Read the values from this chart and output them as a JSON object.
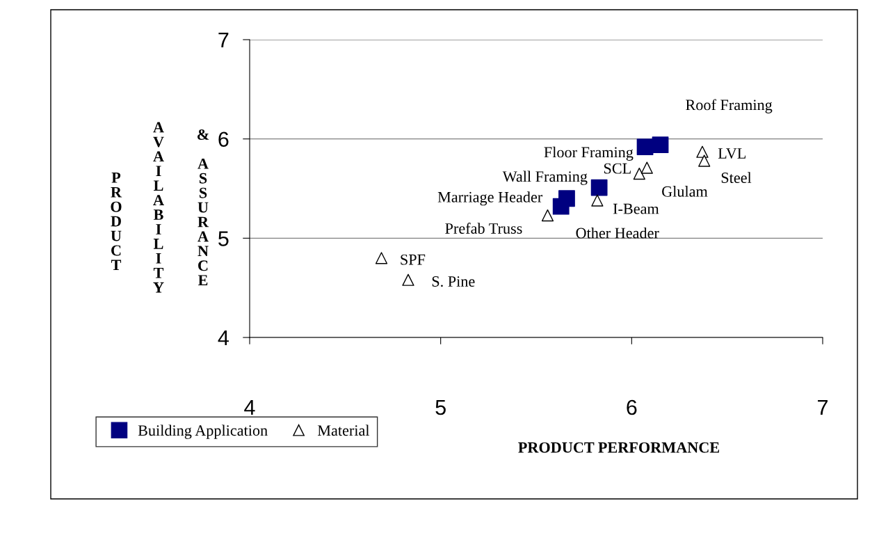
{
  "chart_data": {
    "type": "scatter",
    "xlabel": "PRODUCT PERFORMANCE",
    "ylabel": "PRODUCT AVAILABILITY & ASSURANCE",
    "xlim": [
      4,
      7
    ],
    "ylim": [
      4,
      7
    ],
    "xticks": [
      4,
      5,
      6,
      7
    ],
    "yticks": [
      4,
      5,
      6,
      7
    ],
    "grid": "y",
    "legend": "bottom left",
    "series": [
      {
        "name": "Building Application",
        "color": "#000080",
        "marker": "square",
        "x": [
          6.15,
          6.07,
          5.83,
          5.66,
          5.63
        ],
        "values": [
          5.94,
          5.92,
          5.51,
          5.4,
          5.32
        ]
      },
      {
        "name": "Material",
        "color": "#000000",
        "marker": "triangle",
        "x": [
          6.37,
          6.38,
          6.04,
          6.08,
          5.82,
          5.56,
          4.69,
          4.83
        ],
        "values": [
          5.87,
          5.78,
          5.65,
          5.71,
          5.38,
          5.23,
          4.8,
          4.58
        ]
      }
    ],
    "annotations": [
      {
        "text": "Roof Framing",
        "x": 6.15,
        "y": 5.94
      },
      {
        "text": "Floor Framing",
        "x": 6.07,
        "y": 5.92
      },
      {
        "text": "Wall Framing",
        "x": 5.83,
        "y": 5.51
      },
      {
        "text": "Marriage Header",
        "x": 5.66,
        "y": 5.4
      },
      {
        "text": "Other Header",
        "x": 5.63,
        "y": 5.32
      },
      {
        "text": "LVL",
        "x": 6.37,
        "y": 5.87
      },
      {
        "text": "Steel",
        "x": 6.38,
        "y": 5.78
      },
      {
        "text": "SCL",
        "x": 6.04,
        "y": 5.65
      },
      {
        "text": "Glulam",
        "x": 6.08,
        "y": 5.71
      },
      {
        "text": "I-Beam",
        "x": 5.82,
        "y": 5.38
      },
      {
        "text": "Prefab Truss",
        "x": 5.56,
        "y": 5.23
      },
      {
        "text": "SPF",
        "x": 4.69,
        "y": 4.8
      },
      {
        "text": "S. Pine",
        "x": 4.83,
        "y": 4.58
      }
    ]
  }
}
